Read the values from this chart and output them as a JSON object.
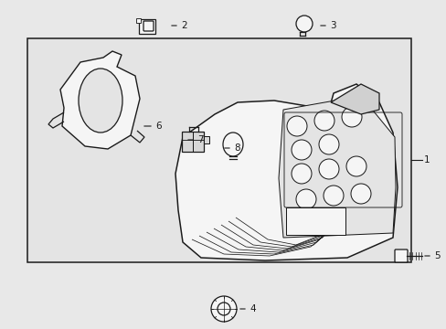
{
  "bg_color": "#e8e8e8",
  "box_bg": "#e4e4e4",
  "line_color": "#1a1a1a",
  "white": "#f5f5f5",
  "fig_width": 4.89,
  "fig_height": 3.6,
  "dpi": 100,
  "label_fontsize": 7.5
}
